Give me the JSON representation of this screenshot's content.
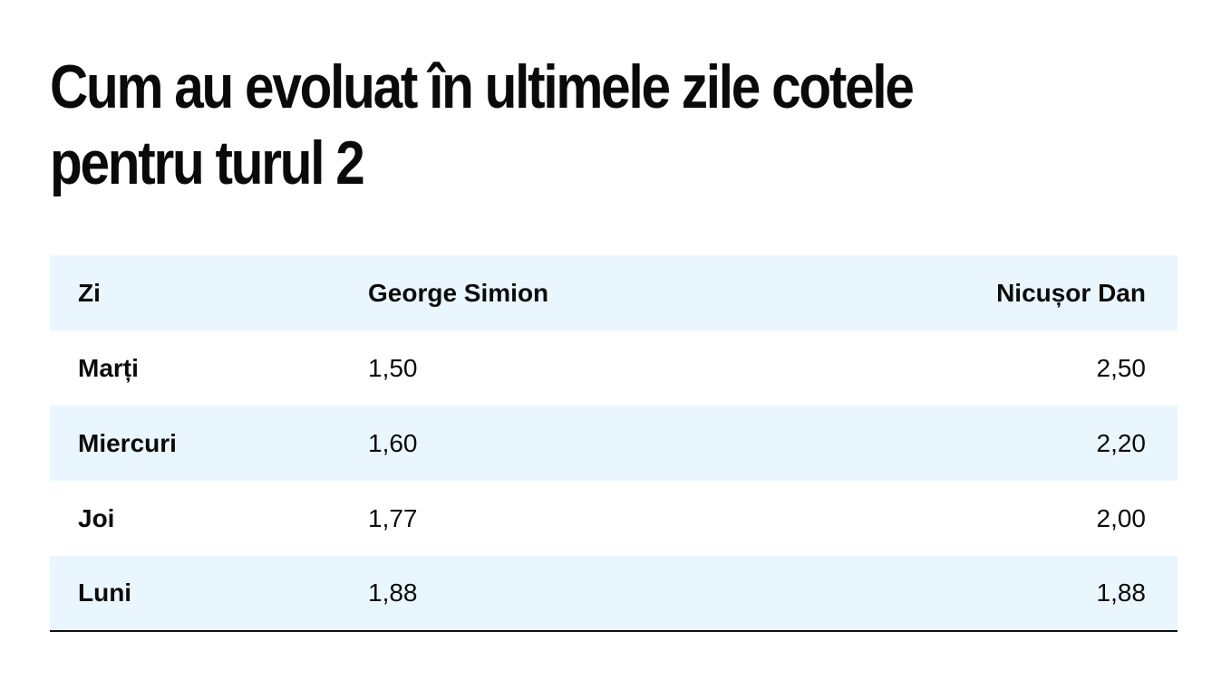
{
  "title": "Cum au evoluat în ultimele zile cotele pentru turul 2",
  "table": {
    "headers": [
      "Zi",
      "George Simion",
      "Nicușor Dan"
    ],
    "rows": [
      [
        "Marți",
        "1,50",
        "2,50"
      ],
      [
        "Miercuri",
        "1,60",
        "2,20"
      ],
      [
        "Joi",
        "1,77",
        "2,00"
      ],
      [
        "Luni",
        "1,88",
        "1,88"
      ]
    ]
  },
  "colors": {
    "stripe": "#eaf6fd",
    "text": "#0b0b0b",
    "rule": "#111111"
  }
}
